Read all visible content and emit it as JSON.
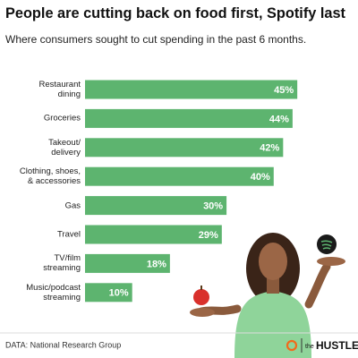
{
  "chart_data": {
    "type": "bar",
    "orientation": "horizontal",
    "title": "People are cutting back on food first, Spotify last",
    "subtitle": "Where consumers sought to cut spending in the past 6 months.",
    "categories": [
      "Restaurant\ndining",
      "Groceries",
      "Takeout/\ndelivery",
      "Clothing, shoes,\n& accessories",
      "Gas",
      "Travel",
      "TV/film\nstreaming",
      "Music/podcast\nstreaming"
    ],
    "values": [
      45,
      44,
      42,
      40,
      30,
      29,
      18,
      10
    ],
    "value_labels": [
      "45%",
      "44%",
      "42%",
      "40%",
      "30%",
      "29%",
      "18%",
      "10%"
    ],
    "color": "#5db46f",
    "source": "DATA: National Research Group"
  },
  "brand": {
    "prefix": "the",
    "name": "HUSTLE"
  }
}
